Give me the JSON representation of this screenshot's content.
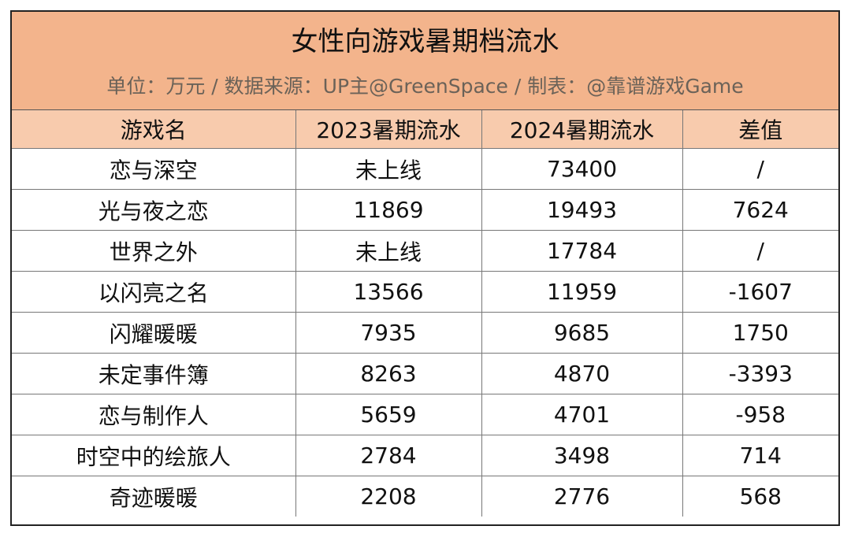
{
  "chart_data": {
    "type": "table",
    "title": "女性向游戏暑期档流水",
    "subtitle": "单位：万元 / 数据来源：UP主@GreenSpace / 制表：@靠谱游戏Game",
    "columns": [
      "游戏名",
      "2023暑期流水",
      "2024暑期流水",
      "差值"
    ],
    "rows": [
      [
        "恋与深空",
        "未上线",
        "73400",
        "/"
      ],
      [
        "光与夜之恋",
        "11869",
        "19493",
        "7624"
      ],
      [
        "世界之外",
        "未上线",
        "17784",
        "/"
      ],
      [
        "以闪亮之名",
        "13566",
        "11959",
        "-1607"
      ],
      [
        "闪耀暖暖",
        "7935",
        "9685",
        "1750"
      ],
      [
        "未定事件簿",
        "8263",
        "4870",
        "-3393"
      ],
      [
        "恋与制作人",
        "5659",
        "4701",
        "-958"
      ],
      [
        "时空中的绘旅人",
        "2784",
        "3498",
        "714"
      ],
      [
        "奇迹暖暖",
        "2208",
        "2776",
        "568"
      ]
    ],
    "colors": {
      "banner": "#f3b48c",
      "header_row": "#f8cbad",
      "subtitle_text": "#6b6258",
      "grid": "#777777"
    }
  }
}
